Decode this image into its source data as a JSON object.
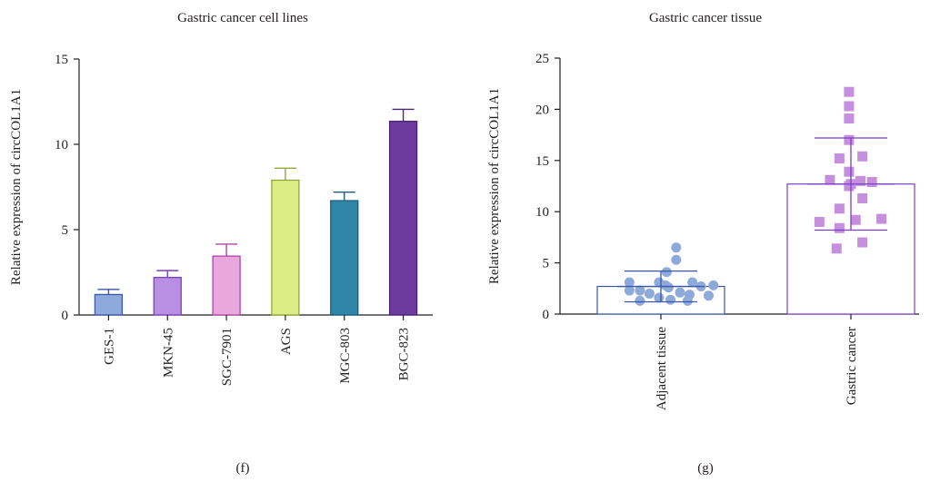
{
  "chart_data": [
    {
      "type": "bar",
      "title": "Gastric cancer cell lines",
      "panel_label": "(f)",
      "ylabel": "Relative expression of circCOL1A1",
      "xlabel": "",
      "ylim": [
        0,
        15
      ],
      "yticks": [
        0,
        5,
        10,
        15
      ],
      "grid": false,
      "categories": [
        "GES-1",
        "MKN-45",
        "SGC-7901",
        "AGS",
        "MGC-803",
        "BGC-823"
      ],
      "values": [
        1.2,
        2.2,
        3.45,
        7.9,
        6.7,
        11.35
      ],
      "errors": [
        0.3,
        0.4,
        0.7,
        0.7,
        0.5,
        0.7
      ],
      "colors": [
        "#8ea9dc",
        "#b98fe3",
        "#e9a8dc",
        "#dced85",
        "#2f86a8",
        "#6d3a9e"
      ],
      "edge_colors": [
        "#3a57a8",
        "#7a3fc7",
        "#b542a8",
        "#8ea836",
        "#1c5f7c",
        "#4a2277"
      ]
    },
    {
      "type": "scatter",
      "title": "Gastric cancer tissue",
      "panel_label": "(g)",
      "ylabel": "Relative expression of circCOL1A1",
      "xlabel": "",
      "ylim": [
        0,
        25
      ],
      "yticks": [
        0,
        5,
        10,
        15,
        20,
        25
      ],
      "grid": false,
      "categories": [
        "Adjacent tissue",
        "Gastric cancer"
      ],
      "bar_values": [
        2.7,
        12.7
      ],
      "errors": [
        1.5,
        4.5
      ],
      "colors": [
        "#8eaadb",
        "#c68fde"
      ],
      "edge_colors": [
        "#3a57a8",
        "#7a3fc7"
      ],
      "series": [
        {
          "name": "",
          "points": [
            [
              -0.33,
              3.1
            ],
            [
              -0.33,
              2.3
            ],
            [
              -0.22,
              2.3
            ],
            [
              -0.22,
              1.3
            ],
            [
              -0.12,
              2.0
            ],
            [
              -0.02,
              3.1
            ],
            [
              -0.02,
              1.6
            ],
            [
              0.05,
              2.8
            ],
            [
              0.06,
              4.1
            ],
            [
              0.08,
              2.6
            ],
            [
              0.1,
              1.4
            ],
            [
              0.16,
              5.3
            ],
            [
              0.16,
              6.5
            ],
            [
              0.2,
              2.1
            ],
            [
              0.28,
              1.3
            ],
            [
              0.3,
              1.9
            ],
            [
              0.33,
              3.1
            ],
            [
              0.42,
              2.7
            ],
            [
              0.5,
              1.8
            ],
            [
              0.55,
              2.8
            ]
          ]
        },
        {
          "name": "",
          "points": [
            [
              -0.33,
              9.0
            ],
            [
              -0.22,
              13.1
            ],
            [
              -0.15,
              6.4
            ],
            [
              -0.12,
              10.3
            ],
            [
              -0.12,
              15.2
            ],
            [
              -0.12,
              8.4
            ],
            [
              -0.02,
              17.0
            ],
            [
              -0.02,
              19.1
            ],
            [
              -0.02,
              20.3
            ],
            [
              -0.02,
              21.7
            ],
            [
              -0.02,
              13.9
            ],
            [
              0.0,
              12.7
            ],
            [
              0.05,
              9.2
            ],
            [
              0.12,
              15.4
            ],
            [
              0.12,
              11.3
            ],
            [
              0.12,
              7.0
            ],
            [
              0.22,
              12.9
            ],
            [
              0.32,
              9.3
            ],
            [
              -0.02,
              12.5
            ],
            [
              0.1,
              13.0
            ]
          ]
        }
      ]
    }
  ]
}
